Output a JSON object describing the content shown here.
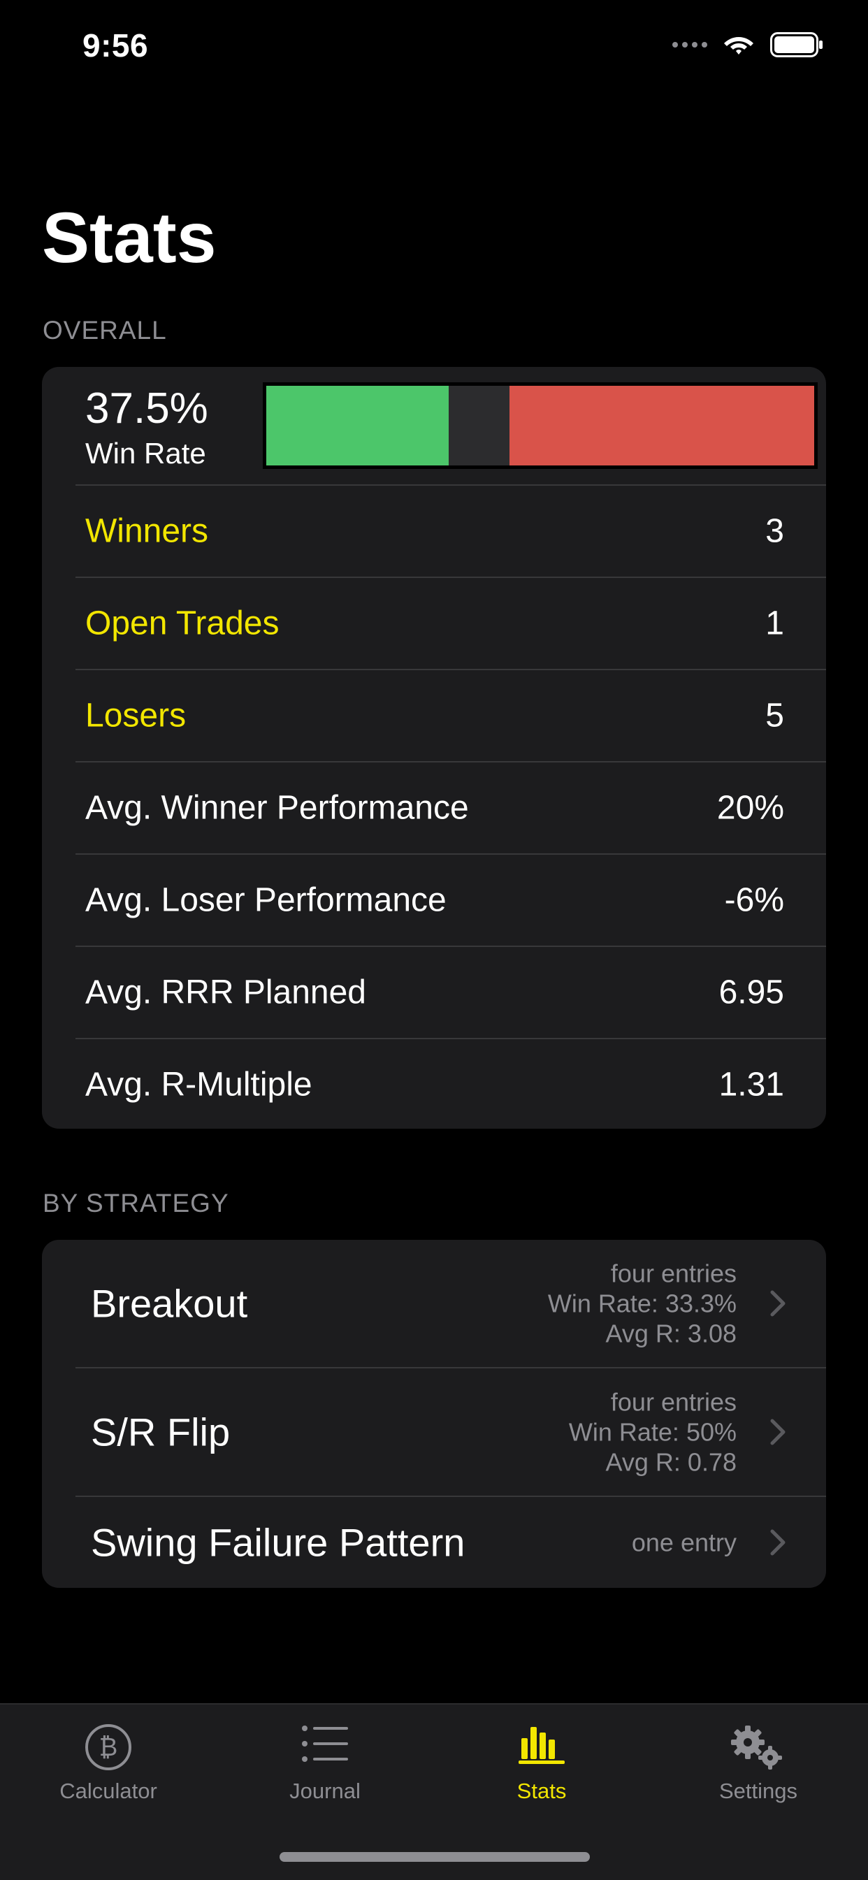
{
  "status_bar": {
    "time": "9:56"
  },
  "page_title": "Stats",
  "overall": {
    "header": "OVERALL",
    "win_rate_value": "37.5%",
    "win_rate_label": "Win Rate",
    "bar": {
      "winners": 3,
      "open": 1,
      "losers": 5,
      "colors": {
        "win": "#4cc66a",
        "open": "#2c2c2e",
        "lose": "#d9534a"
      }
    },
    "rows": [
      {
        "label": "Winners",
        "value": "3",
        "highlight": true
      },
      {
        "label": "Open Trades",
        "value": "1",
        "highlight": true
      },
      {
        "label": "Losers",
        "value": "5",
        "highlight": true
      },
      {
        "label": "Avg. Winner Performance",
        "value": "20%",
        "highlight": false
      },
      {
        "label": "Avg. Loser Performance",
        "value": "-6%",
        "highlight": false
      },
      {
        "label": "Avg. RRR Planned",
        "value": "6.95",
        "highlight": false
      },
      {
        "label": "Avg. R-Multiple",
        "value": "1.31",
        "highlight": false
      }
    ]
  },
  "by_strategy": {
    "header": "BY STRATEGY",
    "items": [
      {
        "name": "Breakout",
        "meta": [
          "four entries",
          "Win Rate: 33.3%",
          "Avg R: 3.08"
        ]
      },
      {
        "name": "S/R Flip",
        "meta": [
          "four entries",
          "Win Rate: 50%",
          "Avg R: 0.78"
        ]
      },
      {
        "name": "Swing Failure Pattern",
        "meta": [
          "one entry"
        ]
      }
    ]
  },
  "tab_bar": {
    "tabs": [
      {
        "label": "Calculator",
        "icon": "bitcoin-icon",
        "active": false
      },
      {
        "label": "Journal",
        "icon": "list-icon",
        "active": false
      },
      {
        "label": "Stats",
        "icon": "bar-chart-icon",
        "active": true
      },
      {
        "label": "Settings",
        "icon": "gears-icon",
        "active": false
      }
    ]
  },
  "colors": {
    "accent": "#f2e600",
    "background": "#000000",
    "card": "#1c1c1e",
    "secondary_text": "#8e8e93"
  }
}
